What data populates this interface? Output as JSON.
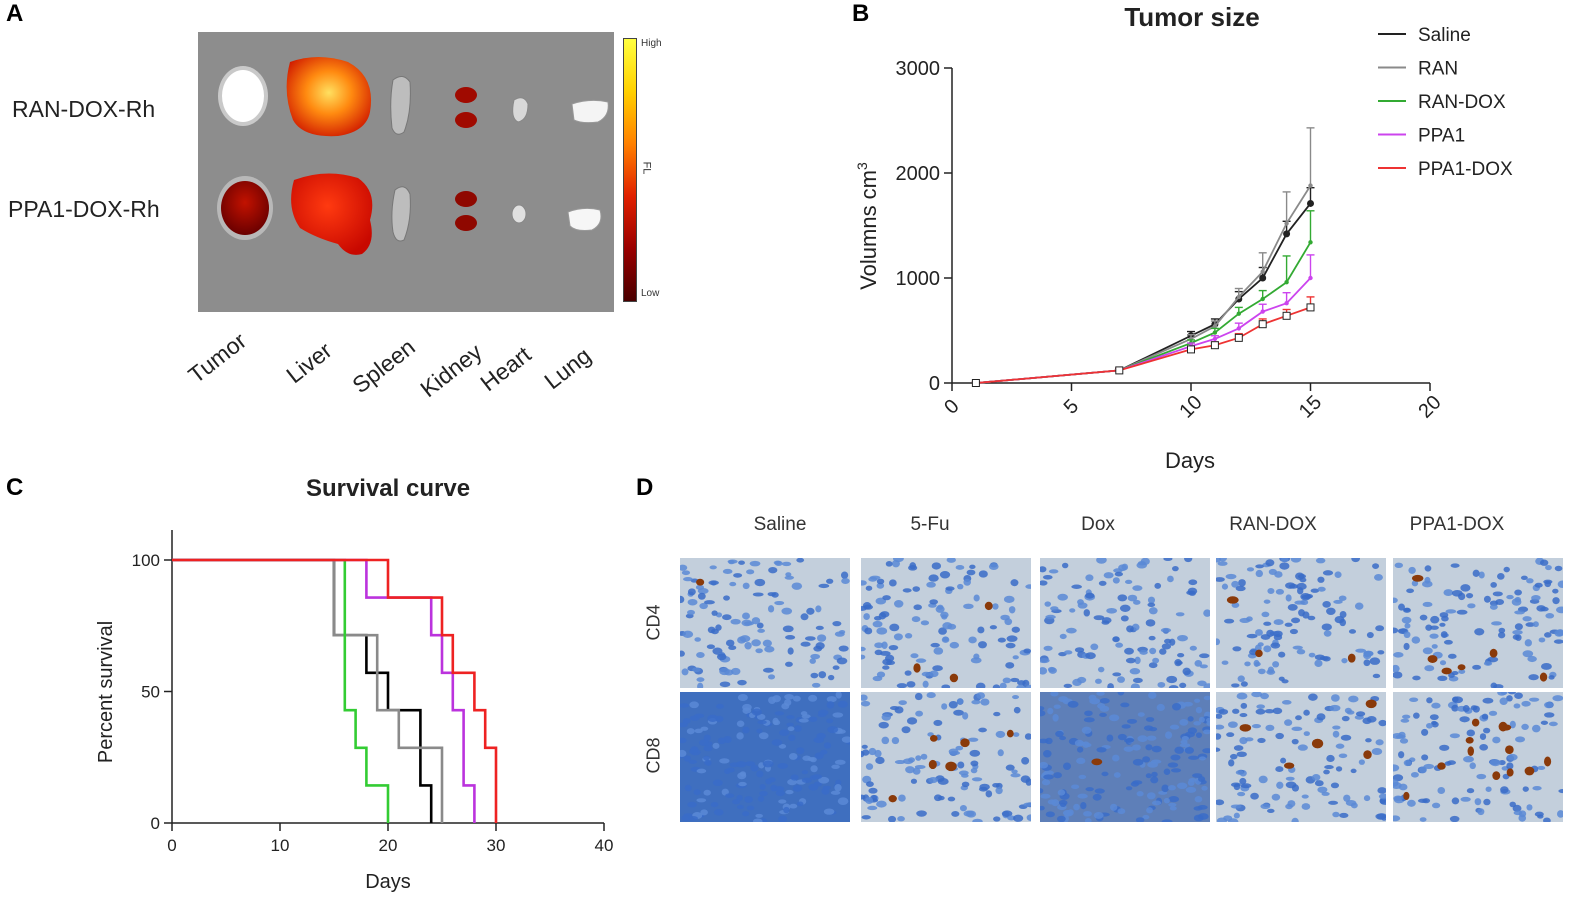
{
  "panels": {
    "a": "A",
    "b": "B",
    "c": "C",
    "d": "D"
  },
  "panel_a": {
    "rows": [
      "RAN-DOX-Rh",
      "PPA1-DOX-Rh"
    ],
    "organs": [
      "Tumor",
      "Liver",
      "Spleen",
      "Kidney",
      "Heart",
      "Lung"
    ],
    "colorbar": {
      "high": "High",
      "low": "Low",
      "unit": "FL"
    }
  },
  "panel_d": {
    "columns": [
      "Saline",
      "5-Fu",
      "Dox",
      "RAN-DOX",
      "PPA1-DOX"
    ],
    "rows": [
      "CD4",
      "CD8"
    ]
  },
  "chart_data": [
    {
      "type": "line",
      "title": "Tumor size",
      "xlabel": "Days",
      "ylabel": "Volumns cm",
      "ylabel_superscript": "3",
      "xlim": [
        0,
        20
      ],
      "ylim": [
        0,
        3000
      ],
      "xticks": [
        0,
        5,
        10,
        15,
        20
      ],
      "yticks": [
        0,
        1000,
        2000,
        3000
      ],
      "x": [
        1,
        7,
        10,
        11,
        12,
        13,
        14,
        15
      ],
      "series": [
        {
          "name": "Saline",
          "color": "#222222",
          "values": [
            0,
            120,
            450,
            560,
            800,
            1000,
            1420,
            1710
          ],
          "errors": [
            10,
            20,
            40,
            50,
            70,
            100,
            120,
            150
          ]
        },
        {
          "name": "RAN",
          "color": "#8a8a8a",
          "values": [
            0,
            120,
            420,
            540,
            820,
            1060,
            1520,
            1880
          ],
          "errors": [
            10,
            20,
            40,
            50,
            80,
            180,
            300,
            550
          ]
        },
        {
          "name": "RAN-DOX",
          "color": "#33aa33",
          "values": [
            0,
            120,
            380,
            480,
            660,
            800,
            960,
            1340
          ],
          "errors": [
            10,
            20,
            30,
            40,
            60,
            80,
            250,
            300
          ]
        },
        {
          "name": "PPA1",
          "color": "#cc44ee",
          "values": [
            0,
            120,
            350,
            420,
            520,
            680,
            760,
            1000
          ],
          "errors": [
            10,
            20,
            30,
            30,
            50,
            70,
            100,
            220
          ]
        },
        {
          "name": "PPA1-DOX",
          "color": "#ee3333",
          "values": [
            0,
            120,
            320,
            360,
            430,
            560,
            640,
            720
          ],
          "errors": [
            10,
            20,
            20,
            30,
            40,
            50,
            60,
            100
          ]
        }
      ]
    },
    {
      "type": "line",
      "subtype": "step",
      "title": "Survival curve",
      "xlabel": "Days",
      "ylabel": "Percent survival",
      "xlim": [
        0,
        40
      ],
      "ylim": [
        0,
        100
      ],
      "xticks": [
        0,
        10,
        20,
        30,
        40
      ],
      "yticks": [
        0,
        50,
        100
      ],
      "series": [
        {
          "name": "Saline",
          "color": "#000000",
          "x": [
            0,
            15,
            18,
            20,
            23,
            24
          ],
          "values": [
            100,
            71.4,
            57.1,
            42.9,
            14.3,
            0
          ]
        },
        {
          "name": "RAN",
          "color": "#8a8a8a",
          "x": [
            0,
            15,
            19,
            21,
            25
          ],
          "values": [
            100,
            71.4,
            42.9,
            28.6,
            0
          ]
        },
        {
          "name": "RAN-DOX",
          "color": "#33cc33",
          "x": [
            0,
            16,
            17,
            18,
            20
          ],
          "values": [
            100,
            42.9,
            28.6,
            14.3,
            0
          ]
        },
        {
          "name": "PPA1",
          "color": "#bb33dd",
          "x": [
            0,
            18,
            24,
            25,
            26,
            27,
            28
          ],
          "values": [
            100,
            85.7,
            71.4,
            57.1,
            42.9,
            14.3,
            0
          ]
        },
        {
          "name": "PPA1-DOX",
          "color": "#ee2222",
          "x": [
            0,
            20,
            25,
            26,
            28,
            29,
            30
          ],
          "values": [
            100,
            85.7,
            71.4,
            57.1,
            42.9,
            28.6,
            0
          ]
        }
      ]
    }
  ]
}
